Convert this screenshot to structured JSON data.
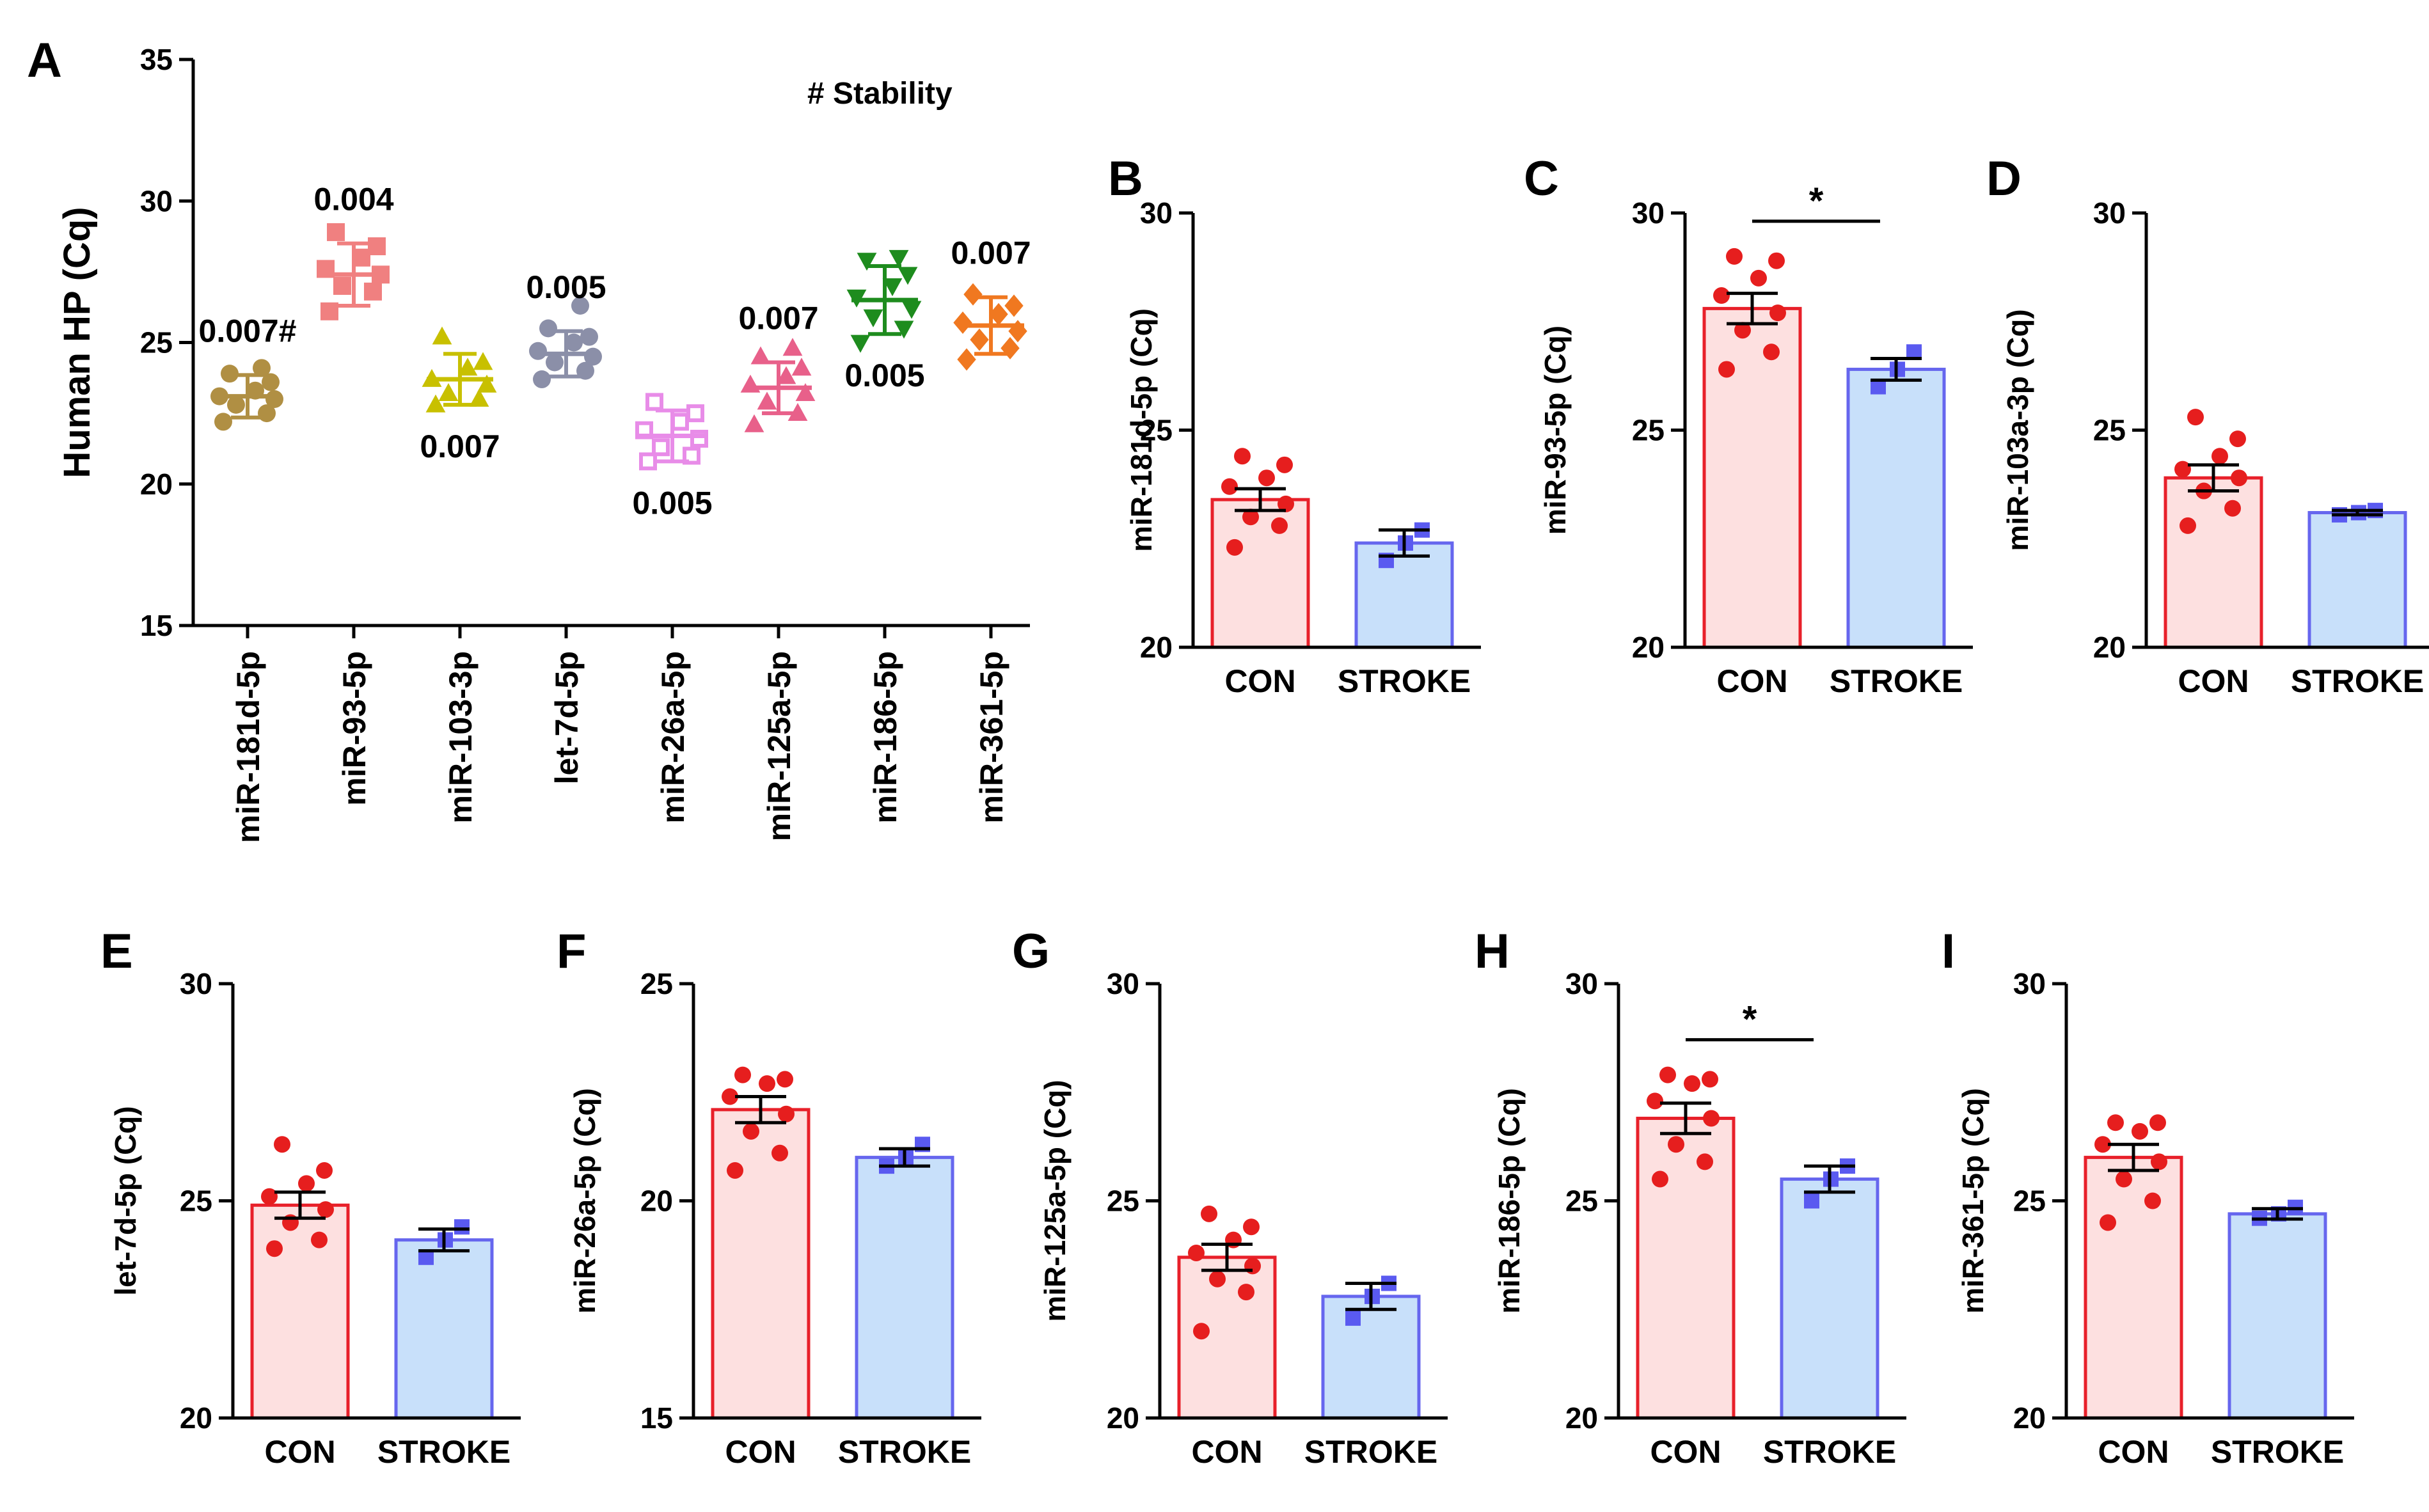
{
  "figure": {
    "stability_label": "# Stability"
  },
  "panel_a": {
    "letter": "A",
    "type": "scatter",
    "ylabel": "Human HP (Cq)",
    "ylim": [
      15,
      35
    ],
    "yticks": [
      15,
      20,
      25,
      30,
      35
    ],
    "categories": [
      {
        "name": "miR-181d-5p",
        "mean": 23.1,
        "sd": 0.75,
        "stability": "0.007#",
        "label_pos": "above",
        "color": "#B08F43",
        "marker": "circle",
        "points": [
          22.2,
          22.5,
          22.8,
          23.0,
          23.1,
          23.3,
          23.6,
          23.9,
          24.1
        ]
      },
      {
        "name": "miR-93-5p",
        "mean": 27.4,
        "sd": 1.1,
        "stability": "0.004",
        "label_pos": "above",
        "color": "#F08080",
        "marker": "square",
        "points": [
          26.1,
          26.8,
          27.0,
          27.4,
          27.6,
          28.0,
          28.4,
          28.9
        ]
      },
      {
        "name": "miR-103-3p",
        "mean": 23.7,
        "sd": 0.9,
        "stability": "0.007",
        "label_pos": "below",
        "color": "#C8C000",
        "marker": "triangle",
        "points": [
          22.8,
          23.0,
          23.2,
          23.5,
          23.7,
          24.1,
          24.3,
          25.2
        ]
      },
      {
        "name": "let-7d-5p",
        "mean": 24.6,
        "sd": 0.8,
        "stability": "0.005",
        "label_pos": "above",
        "color": "#8B8FA8",
        "marker": "circle",
        "points": [
          23.7,
          24.0,
          24.3,
          24.5,
          24.7,
          25.0,
          25.2,
          25.5,
          26.3
        ]
      },
      {
        "name": "miR-26a-5p",
        "mean": 21.7,
        "sd": 0.9,
        "stability": "0.005",
        "label_pos": "below",
        "color": "#E88CE8",
        "marker": "open-square",
        "points": [
          20.8,
          21.0,
          21.3,
          21.6,
          21.9,
          22.2,
          22.5,
          22.9
        ]
      },
      {
        "name": "miR-125a-5p",
        "mean": 23.4,
        "sd": 0.9,
        "stability": "0.007",
        "label_pos": "above",
        "color": "#E8608A",
        "marker": "triangle",
        "points": [
          22.1,
          22.5,
          22.9,
          23.2,
          23.5,
          23.8,
          24.1,
          24.5,
          24.8
        ]
      },
      {
        "name": "miR-186-5p",
        "mean": 26.5,
        "sd": 1.2,
        "stability": "0.005",
        "label_pos": "below",
        "color": "#1E8C1E",
        "marker": "triangle-down",
        "points": [
          25.0,
          25.5,
          25.9,
          26.2,
          26.6,
          27.0,
          27.4,
          27.9,
          28.0
        ]
      },
      {
        "name": "miR-361-5p",
        "mean": 25.6,
        "sd": 1.0,
        "stability": "0.007",
        "label_pos": "above",
        "color": "#F07820",
        "marker": "diamond",
        "points": [
          24.4,
          24.8,
          25.1,
          25.4,
          25.7,
          26.0,
          26.3,
          26.7
        ]
      }
    ]
  },
  "bar_panels": [
    {
      "letter": "B",
      "ylabel": "miR-181d-5p (Cq)",
      "ylim": [
        20,
        30
      ],
      "yticks": [
        20,
        25,
        30
      ],
      "sig": "",
      "con": {
        "label": "CON",
        "mean": 23.4,
        "sem": 0.25,
        "points": [
          22.3,
          22.8,
          23.0,
          23.3,
          23.7,
          23.9,
          24.2,
          24.4
        ]
      },
      "stroke": {
        "label": "STROKE",
        "mean": 22.4,
        "sem": 0.3,
        "points": [
          22.0,
          22.4,
          22.7
        ]
      }
    },
    {
      "letter": "C",
      "ylabel": "miR-93-5p (Cq)",
      "ylim": [
        20,
        30
      ],
      "yticks": [
        20,
        25,
        30
      ],
      "sig": "*",
      "con": {
        "label": "CON",
        "mean": 27.8,
        "sem": 0.35,
        "points": [
          26.4,
          26.8,
          27.3,
          27.7,
          28.1,
          28.5,
          28.9,
          29.0
        ]
      },
      "stroke": {
        "label": "STROKE",
        "mean": 26.4,
        "sem": 0.25,
        "points": [
          26.0,
          26.4,
          26.8
        ]
      }
    },
    {
      "letter": "D",
      "ylabel": "miR-103a-3p (Cq)",
      "ylim": [
        20,
        30
      ],
      "yticks": [
        20,
        25,
        30
      ],
      "sig": "",
      "con": {
        "label": "CON",
        "mean": 23.9,
        "sem": 0.3,
        "points": [
          22.8,
          23.2,
          23.6,
          23.9,
          24.1,
          24.4,
          24.8,
          25.3
        ]
      },
      "stroke": {
        "label": "STROKE",
        "mean": 23.1,
        "sem": 0.05,
        "points": [
          23.05,
          23.1,
          23.15
        ]
      }
    },
    {
      "letter": "E",
      "ylabel": "let-7d-5p (Cq)",
      "ylim": [
        20,
        30
      ],
      "yticks": [
        20,
        25,
        30
      ],
      "sig": "",
      "con": {
        "label": "CON",
        "mean": 24.9,
        "sem": 0.3,
        "points": [
          23.9,
          24.1,
          24.5,
          24.8,
          25.1,
          25.4,
          25.7,
          26.3
        ]
      },
      "stroke": {
        "label": "STROKE",
        "mean": 24.1,
        "sem": 0.25,
        "points": [
          23.7,
          24.1,
          24.4
        ]
      }
    },
    {
      "letter": "F",
      "ylabel": "miR-26a-5p (Cq)",
      "ylim": [
        15,
        25
      ],
      "yticks": [
        15,
        20,
        25
      ],
      "sig": "",
      "con": {
        "label": "CON",
        "mean": 22.1,
        "sem": 0.3,
        "points": [
          20.7,
          21.1,
          21.6,
          22.0,
          22.4,
          22.7,
          22.8,
          22.9
        ]
      },
      "stroke": {
        "label": "STROKE",
        "mean": 21.0,
        "sem": 0.2,
        "points": [
          20.8,
          21.0,
          21.3
        ]
      }
    },
    {
      "letter": "G",
      "ylabel": "miR-125a-5p (Cq)",
      "ylim": [
        20,
        30
      ],
      "yticks": [
        20,
        25,
        30
      ],
      "sig": "",
      "con": {
        "label": "CON",
        "mean": 23.7,
        "sem": 0.3,
        "points": [
          22.0,
          22.9,
          23.2,
          23.5,
          23.8,
          24.1,
          24.4,
          24.7
        ]
      },
      "stroke": {
        "label": "STROKE",
        "mean": 22.8,
        "sem": 0.3,
        "points": [
          22.3,
          22.8,
          23.1
        ]
      }
    },
    {
      "letter": "H",
      "ylabel": "miR-186-5p (Cq)",
      "ylim": [
        20,
        30
      ],
      "yticks": [
        20,
        25,
        30
      ],
      "sig": "*",
      "con": {
        "label": "CON",
        "mean": 26.9,
        "sem": 0.35,
        "points": [
          25.5,
          25.9,
          26.3,
          26.9,
          27.3,
          27.7,
          27.8,
          27.9
        ]
      },
      "stroke": {
        "label": "STROKE",
        "mean": 25.5,
        "sem": 0.3,
        "points": [
          25.0,
          25.5,
          25.8
        ]
      }
    },
    {
      "letter": "I",
      "ylabel": "miR-361-5p (Cq)",
      "ylim": [
        20,
        30
      ],
      "yticks": [
        20,
        25,
        30
      ],
      "sig": "",
      "con": {
        "label": "CON",
        "mean": 26.0,
        "sem": 0.3,
        "points": [
          24.5,
          25.0,
          25.5,
          25.9,
          26.3,
          26.6,
          26.8,
          26.8
        ]
      },
      "stroke": {
        "label": "STROKE",
        "mean": 24.7,
        "sem": 0.12,
        "points": [
          24.6,
          24.7,
          24.85
        ]
      }
    }
  ],
  "colors": {
    "con_fill": "#FDE0E0",
    "con_edge": "#E8202A",
    "con_dot": "#E61E1E",
    "stroke_fill": "#C8E0FA",
    "stroke_edge": "#6666EE",
    "stroke_dot": "#5A5AF0"
  },
  "chart_data": [
    {
      "type": "scatter",
      "title": "A",
      "ylabel": "Human HP (Cq)",
      "ylim": [
        15,
        35
      ],
      "categories": [
        "miR-181d-5p",
        "miR-93-5p",
        "miR-103-3p",
        "let-7d-5p",
        "miR-26a-5p",
        "miR-125a-5p",
        "miR-186-5p",
        "miR-361-5p"
      ],
      "means": [
        23.1,
        27.4,
        23.7,
        24.6,
        21.7,
        23.4,
        26.5,
        25.6
      ],
      "stability": [
        "0.007#",
        "0.004",
        "0.007",
        "0.005",
        "0.005",
        "0.007",
        "0.005",
        "0.007"
      ],
      "annotation": "# Stability"
    },
    {
      "type": "bar",
      "title": "B",
      "categories": [
        "CON",
        "STROKE"
      ],
      "values": [
        23.4,
        22.4
      ],
      "ylabel": "miR-181d-5p (Cq)",
      "ylim": [
        20,
        30
      ]
    },
    {
      "type": "bar",
      "title": "C",
      "categories": [
        "CON",
        "STROKE"
      ],
      "values": [
        27.8,
        26.4
      ],
      "ylabel": "miR-93-5p (Cq)",
      "ylim": [
        20,
        30
      ],
      "significance": "*"
    },
    {
      "type": "bar",
      "title": "D",
      "categories": [
        "CON",
        "STROKE"
      ],
      "values": [
        23.9,
        23.1
      ],
      "ylabel": "miR-103a-3p (Cq)",
      "ylim": [
        20,
        30
      ]
    },
    {
      "type": "bar",
      "title": "E",
      "categories": [
        "CON",
        "STROKE"
      ],
      "values": [
        24.9,
        24.1
      ],
      "ylabel": "let-7d-5p (Cq)",
      "ylim": [
        20,
        30
      ]
    },
    {
      "type": "bar",
      "title": "F",
      "categories": [
        "CON",
        "STROKE"
      ],
      "values": [
        22.1,
        21.0
      ],
      "ylabel": "miR-26a-5p (Cq)",
      "ylim": [
        15,
        25
      ]
    },
    {
      "type": "bar",
      "title": "G",
      "categories": [
        "CON",
        "STROKE"
      ],
      "values": [
        23.7,
        22.8
      ],
      "ylabel": "miR-125a-5p (Cq)",
      "ylim": [
        20,
        30
      ]
    },
    {
      "type": "bar",
      "title": "H",
      "categories": [
        "CON",
        "STROKE"
      ],
      "values": [
        26.9,
        25.5
      ],
      "ylabel": "miR-186-5p (Cq)",
      "ylim": [
        20,
        30
      ],
      "significance": "*"
    },
    {
      "type": "bar",
      "title": "I",
      "categories": [
        "CON",
        "STROKE"
      ],
      "values": [
        26.0,
        24.7
      ],
      "ylabel": "miR-361-5p (Cq)",
      "ylim": [
        20,
        30
      ]
    }
  ]
}
